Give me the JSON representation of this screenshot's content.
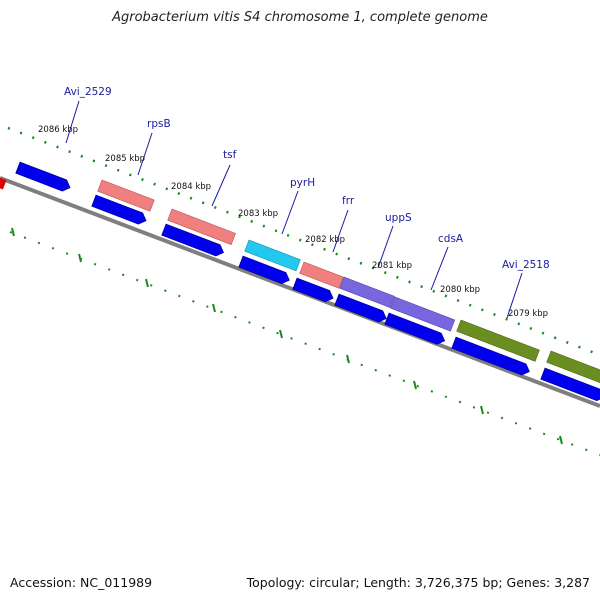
{
  "title": "Agrobacterium vitis S4 chromosome 1, complete genome",
  "footer": {
    "accession": "Accession: NC_011989",
    "topology": "Topology: circular; Length: 3,726,375 bp; Genes: 3,287"
  },
  "colors": {
    "backbone": "#7f7f7f",
    "tick": "#1a8a1a",
    "cds": "#0000ee",
    "rRNA_like": "#f08080",
    "pyrH": "#22c8ee",
    "uppS_cdsA": "#7766dd",
    "avi2518": "#6b8e23",
    "edge_mark": "#dd0000",
    "gene_label": "#1a1aa0"
  },
  "kbp_labels": [
    "2086 kbp",
    "2085 kbp",
    "2084 kbp",
    "2083 kbp",
    "2082 kbp",
    "2081 kbp",
    "2080 kbp",
    "2079 kbp"
  ],
  "gene_labels": [
    "Avi_2529",
    "rpsB",
    "tsf",
    "pyrH",
    "frr",
    "uppS",
    "cdsA",
    "Avi_2518"
  ]
}
